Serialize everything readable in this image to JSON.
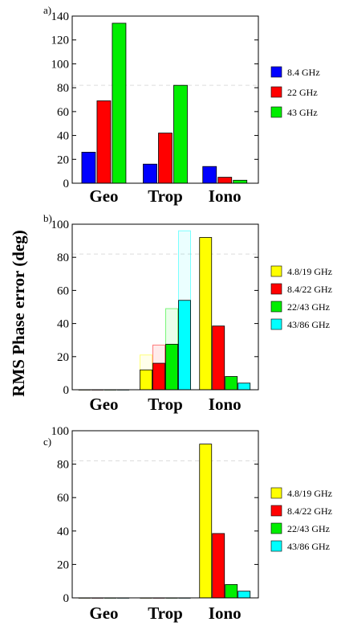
{
  "ylabel": "RMS Phase error (deg)",
  "chart_data": [
    {
      "type": "bar",
      "panel_label": "a)",
      "categories": [
        "Geo",
        "Trop",
        "Iono"
      ],
      "ylim": [
        0,
        140
      ],
      "yticks": [
        0,
        20,
        40,
        60,
        80,
        100,
        120,
        140
      ],
      "reference_line": 82,
      "legend_position": "right",
      "series": [
        {
          "name": "8.4 GHz",
          "color": "#0000ff",
          "values": [
            26,
            16,
            14
          ]
        },
        {
          "name": "22 GHz",
          "color": "#ff0000",
          "values": [
            69,
            42,
            5
          ]
        },
        {
          "name": "43 GHz",
          "color": "#00ee00",
          "values": [
            134,
            82,
            2.5
          ]
        }
      ]
    },
    {
      "type": "bar",
      "panel_label": "b)",
      "categories": [
        "Geo",
        "Trop",
        "Iono"
      ],
      "ylim": [
        0,
        100
      ],
      "yticks": [
        0,
        20,
        40,
        60,
        80,
        100
      ],
      "reference_line": 82,
      "legend_position": "right",
      "series": [
        {
          "name": "4.8/19 GHz",
          "color": "#ffff00",
          "values": [
            0,
            12,
            92
          ],
          "upper_values": [
            0,
            21,
            null
          ]
        },
        {
          "name": "8.4/22 GHz",
          "color": "#ff0000",
          "values": [
            0,
            16,
            38.5
          ],
          "upper_values": [
            0,
            27,
            null
          ]
        },
        {
          "name": "22/43 GHz",
          "color": "#00ee00",
          "values": [
            0,
            27.5,
            8
          ],
          "upper_values": [
            0,
            49,
            null
          ]
        },
        {
          "name": "43/86 GHz",
          "color": "#00ffff",
          "values": [
            0,
            54,
            4
          ],
          "upper_values": [
            0,
            96,
            null
          ]
        }
      ]
    },
    {
      "type": "bar",
      "panel_label": "c)",
      "categories": [
        "Geo",
        "Trop",
        "Iono"
      ],
      "ylim": [
        0,
        100
      ],
      "yticks": [
        0,
        20,
        40,
        60,
        80,
        100
      ],
      "reference_line": 82,
      "legend_position": "right",
      "series": [
        {
          "name": "4.8/19 GHz",
          "color": "#ffff00",
          "values": [
            0,
            0,
            92
          ]
        },
        {
          "name": "8.4/22 GHz",
          "color": "#ff0000",
          "values": [
            0,
            0,
            38.5
          ]
        },
        {
          "name": "22/43 GHz",
          "color": "#00ee00",
          "values": [
            0,
            0,
            8
          ]
        },
        {
          "name": "43/86 GHz",
          "color": "#00ffff",
          "values": [
            0,
            0,
            4
          ]
        }
      ]
    }
  ]
}
